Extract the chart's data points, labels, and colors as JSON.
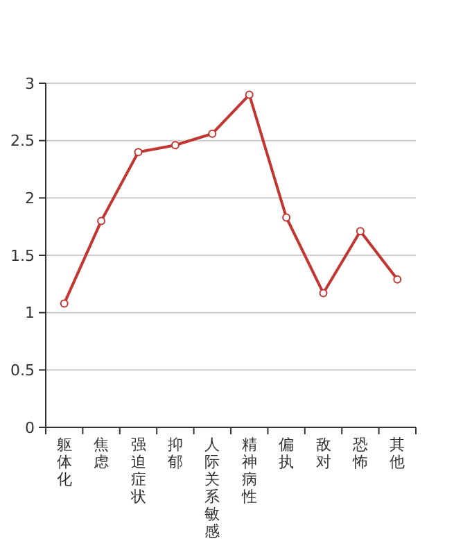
{
  "chart_data": {
    "type": "line",
    "categories": [
      "躯体化",
      "焦虑",
      "强迫症状",
      "抑郁",
      "人际关系敏感",
      "精神病性",
      "偏执",
      "敌对",
      "恐怖",
      "其他"
    ],
    "series": [
      {
        "color": "#c23531",
        "values": [
          1.08,
          1.8,
          2.4,
          2.46,
          2.56,
          2.9,
          1.83,
          1.17,
          1.71,
          1.29
        ]
      }
    ],
    "ylim": [
      0,
      3
    ],
    "yticks": [
      0,
      {
        "value": 0.5,
        "label": "0.5"
      },
      1,
      {
        "value": 1.5,
        "label": "1.5"
      },
      2,
      {
        "value": 2.5,
        "label": "2.5"
      },
      3
    ],
    "grid": "y",
    "marker": "circle",
    "line_style": "solid"
  }
}
